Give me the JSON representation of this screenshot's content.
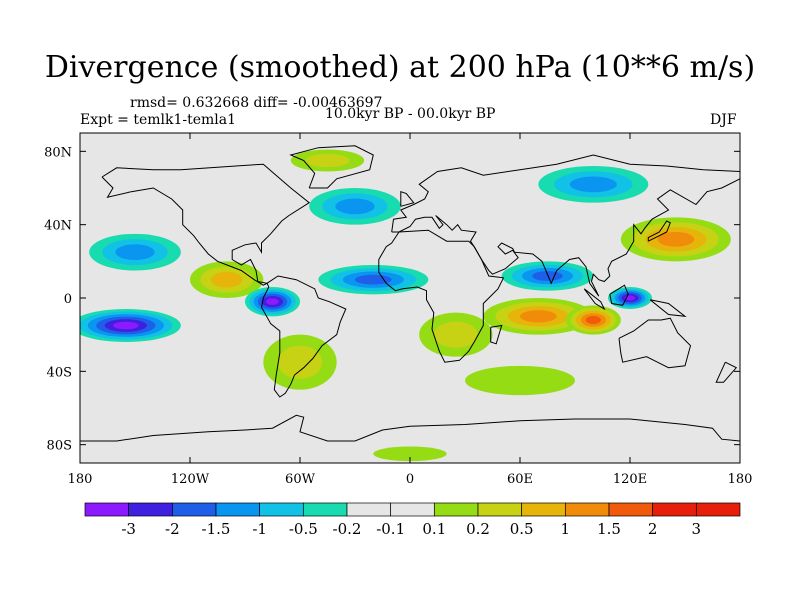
{
  "title": "Divergence (smoothed) at 200 hPa (10**6 m/s)",
  "stats": "rmsd= 0.632668 diff= -0.00463697",
  "experiment": "Expt = temlk1-temla1",
  "period": "10.0kyr BP - 00.0kyr BP",
  "season": "DJF",
  "map": {
    "projection": "cylindrical-equidistant",
    "lon_range": [
      -180,
      180
    ],
    "lat_range": [
      -90,
      90
    ],
    "lon_ticks": [
      {
        "value": -180,
        "label": "180"
      },
      {
        "value": -120,
        "label": "120W"
      },
      {
        "value": -60,
        "label": "60W"
      },
      {
        "value": 0,
        "label": "0"
      },
      {
        "value": 60,
        "label": "60E"
      },
      {
        "value": 120,
        "label": "120E"
      },
      {
        "value": 180,
        "label": "180"
      }
    ],
    "lat_ticks": [
      {
        "value": 80,
        "label": "80N"
      },
      {
        "value": 40,
        "label": "40N"
      },
      {
        "value": 0,
        "label": "0"
      },
      {
        "value": -40,
        "label": "40S"
      },
      {
        "value": -80,
        "label": "80S"
      }
    ],
    "background_color": "#e6e6e6",
    "anomalies": [
      {
        "region": "South Pacific convergence band",
        "lon": -155,
        "lat": -15,
        "rx": 30,
        "ry": 9,
        "value": -3
      },
      {
        "region": "North Pacific",
        "lon": -150,
        "lat": 25,
        "rx": 25,
        "ry": 10,
        "value": -1
      },
      {
        "region": "Central America",
        "lon": -100,
        "lat": 10,
        "rx": 20,
        "ry": 10,
        "value": 1
      },
      {
        "region": "Tropical South America",
        "lon": -75,
        "lat": -2,
        "rx": 15,
        "ry": 8,
        "value": -3
      },
      {
        "region": "Southern South America",
        "lon": -60,
        "lat": -35,
        "rx": 20,
        "ry": 15,
        "value": 0.5
      },
      {
        "region": "Tropical Atlantic",
        "lon": -20,
        "lat": 10,
        "rx": 30,
        "ry": 8,
        "value": -1.5
      },
      {
        "region": "Southern Africa",
        "lon": 25,
        "lat": -20,
        "rx": 20,
        "ry": 12,
        "value": 0.5
      },
      {
        "region": "Indian Ocean",
        "lon": 70,
        "lat": -10,
        "rx": 30,
        "ry": 10,
        "value": 1.5
      },
      {
        "region": "South Asia",
        "lon": 75,
        "lat": 12,
        "rx": 25,
        "ry": 8,
        "value": -1.5
      },
      {
        "region": "Maritime Continent",
        "lon": 120,
        "lat": 0,
        "rx": 12,
        "ry": 6,
        "value": -3
      },
      {
        "region": "Western Pacific warm pool",
        "lon": 100,
        "lat": -12,
        "rx": 15,
        "ry": 8,
        "value": 2
      },
      {
        "region": "East Asia jet",
        "lon": 145,
        "lat": 32,
        "rx": 30,
        "ry": 12,
        "value": 1.5
      },
      {
        "region": "Siberia",
        "lon": 100,
        "lat": 62,
        "rx": 30,
        "ry": 10,
        "value": -1
      },
      {
        "region": "North Atlantic",
        "lon": -30,
        "lat": 50,
        "rx": 25,
        "ry": 10,
        "value": -1
      },
      {
        "region": "Greenland",
        "lon": -45,
        "lat": 75,
        "rx": 20,
        "ry": 6,
        "value": 0.5
      },
      {
        "region": "Southern Indian Ocean",
        "lon": 60,
        "lat": -45,
        "rx": 30,
        "ry": 8,
        "value": 0.2
      },
      {
        "region": "Antarctic coast",
        "lon": 0,
        "lat": -85,
        "rx": 20,
        "ry": 4,
        "value": 0.2
      }
    ]
  },
  "colorbar": {
    "bins": [
      {
        "color": "#8c1aff",
        "label": "-3"
      },
      {
        "color": "#4020e0",
        "label": "-2"
      },
      {
        "color": "#1e5ee8",
        "label": "-1.5"
      },
      {
        "color": "#0a96f0",
        "label": "-1"
      },
      {
        "color": "#12c2e6",
        "label": "-0.5"
      },
      {
        "color": "#18dcb0",
        "label": "-0.2"
      },
      {
        "color": "#e6e6e6",
        "label": "-0.1"
      },
      {
        "color": "#e6e6e6",
        "label": "0.1"
      },
      {
        "color": "#96dc14",
        "label": "0.2"
      },
      {
        "color": "#c8d214",
        "label": "0.5"
      },
      {
        "color": "#e6b40a",
        "label": "1"
      },
      {
        "color": "#f08c0a",
        "label": "1.5"
      },
      {
        "color": "#f05a0a",
        "label": "2"
      },
      {
        "color": "#e61e0a",
        "label": "3"
      },
      {
        "color": "#e61e0a",
        "label": ""
      }
    ]
  }
}
